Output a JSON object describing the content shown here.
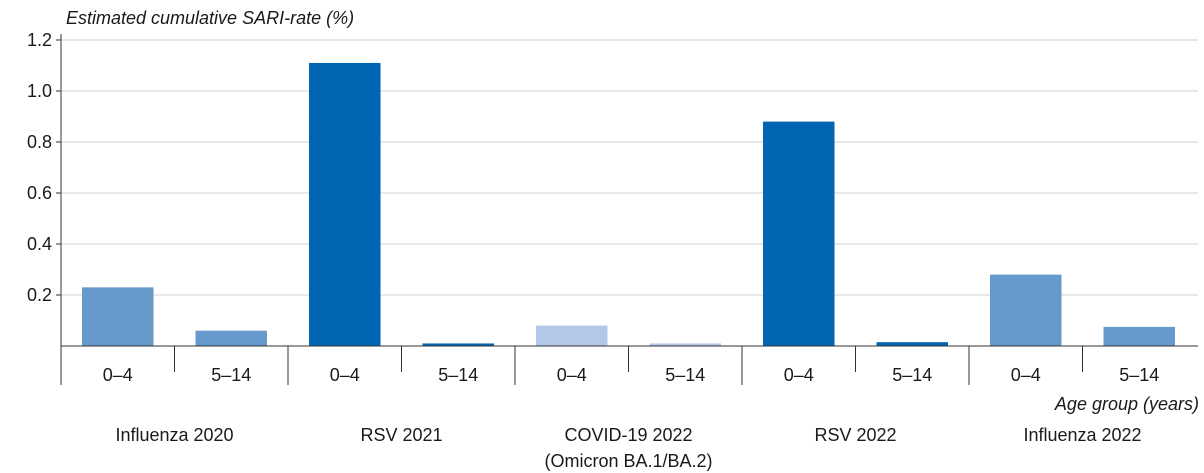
{
  "chart_data": {
    "type": "bar",
    "ylabel": "Estimated cumulative SARI-rate (%)",
    "xlabel": "Age group (years)",
    "ylim": [
      0,
      1.2
    ],
    "yticks": [
      "0.2",
      "0.4",
      "0.6",
      "0.8",
      "1.0",
      "1.2"
    ],
    "grid": "horizontal",
    "groups": [
      {
        "label": "Influenza 2020",
        "label2": "",
        "bars": [
          {
            "category": "0–4",
            "value": 0.23,
            "color": "#6699cc"
          },
          {
            "category": "5–14",
            "value": 0.06,
            "color": "#6699cc"
          }
        ]
      },
      {
        "label": "RSV 2021",
        "label2": "",
        "bars": [
          {
            "category": "0–4",
            "value": 1.11,
            "color": "#0066b3"
          },
          {
            "category": "5–14",
            "value": 0.01,
            "color": "#0066b3"
          }
        ]
      },
      {
        "label": "COVID-19 2022",
        "label2": "(Omicron BA.1/BA.2)",
        "bars": [
          {
            "category": "0–4",
            "value": 0.08,
            "color": "#b3c8e8"
          },
          {
            "category": "5–14",
            "value": 0.01,
            "color": "#b3c8e8"
          }
        ]
      },
      {
        "label": "RSV 2022",
        "label2": "",
        "bars": [
          {
            "category": "0–4",
            "value": 0.88,
            "color": "#0066b3"
          },
          {
            "category": "5–14",
            "value": 0.015,
            "color": "#0066b3"
          }
        ]
      },
      {
        "label": "Influenza  2022",
        "label2": "",
        "bars": [
          {
            "category": "0–4",
            "value": 0.28,
            "color": "#6699cc"
          },
          {
            "category": "5–14",
            "value": 0.075,
            "color": "#6699cc"
          }
        ]
      }
    ]
  }
}
